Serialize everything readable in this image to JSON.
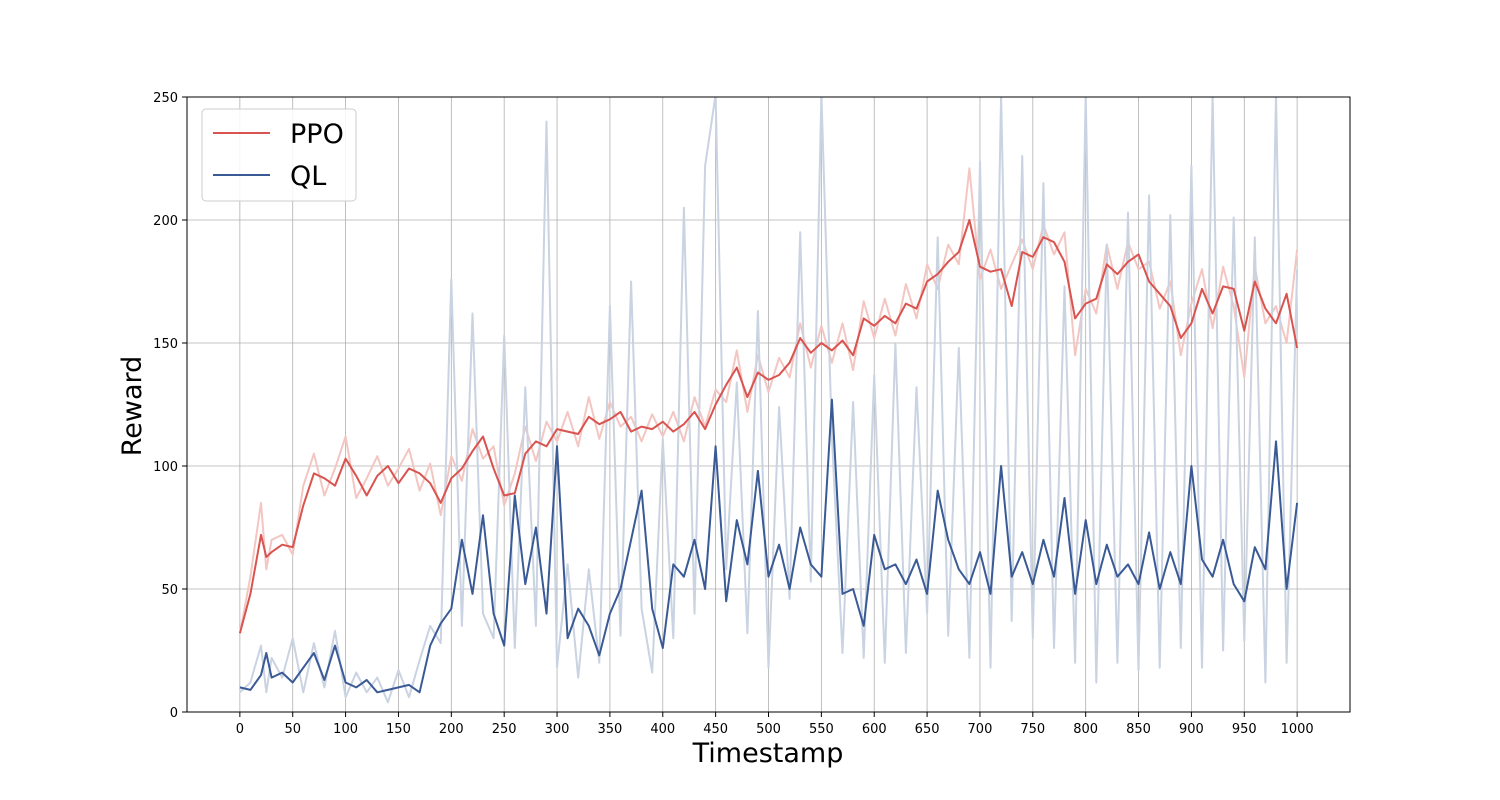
{
  "chart_data": {
    "type": "line",
    "xlabel": "Timestamp",
    "ylabel": "Reward",
    "xlim": [
      -50,
      1050
    ],
    "ylim": [
      0,
      250
    ],
    "x_ticks": [
      0,
      50,
      100,
      150,
      200,
      250,
      300,
      350,
      400,
      450,
      500,
      550,
      600,
      650,
      700,
      750,
      800,
      850,
      900,
      950,
      1000
    ],
    "y_ticks": [
      0,
      50,
      100,
      150,
      200,
      250
    ],
    "grid": true,
    "legend_position": "top-left",
    "series": [
      {
        "name": "PPO",
        "color": "#d9534f",
        "raw_color": "#f3c6c2",
        "x": [
          0,
          10,
          20,
          25,
          30,
          40,
          50,
          60,
          70,
          80,
          90,
          100,
          110,
          120,
          130,
          140,
          150,
          160,
          170,
          180,
          190,
          200,
          210,
          220,
          230,
          240,
          250,
          260,
          270,
          280,
          290,
          300,
          310,
          320,
          330,
          340,
          350,
          360,
          370,
          380,
          390,
          400,
          410,
          420,
          430,
          440,
          450,
          460,
          470,
          480,
          490,
          500,
          510,
          520,
          530,
          540,
          550,
          560,
          570,
          580,
          590,
          600,
          610,
          620,
          630,
          640,
          650,
          660,
          670,
          680,
          690,
          700,
          710,
          720,
          730,
          740,
          750,
          760,
          770,
          780,
          790,
          800,
          810,
          820,
          830,
          840,
          850,
          860,
          870,
          880,
          890,
          900,
          910,
          920,
          930,
          940,
          950,
          960,
          970,
          980,
          990,
          1000
        ],
        "smoothed": [
          32,
          48,
          72,
          63,
          65,
          68,
          67,
          84,
          97,
          95,
          92,
          103,
          96,
          88,
          96,
          100,
          93,
          99,
          97,
          93,
          85,
          95,
          99,
          106,
          112,
          99,
          88,
          89,
          105,
          110,
          108,
          115,
          114,
          113,
          120,
          117,
          119,
          122,
          114,
          116,
          115,
          118,
          114,
          117,
          122,
          115,
          125,
          133,
          140,
          128,
          138,
          135,
          137,
          142,
          152,
          146,
          150,
          147,
          151,
          145,
          160,
          157,
          161,
          158,
          166,
          164,
          175,
          178,
          183,
          187,
          200,
          181,
          179,
          180,
          165,
          187,
          185,
          193,
          191,
          183,
          160,
          166,
          168,
          182,
          178,
          183,
          186,
          175,
          170,
          165,
          152,
          158,
          172,
          162,
          173,
          172,
          155,
          175,
          164,
          158,
          170,
          148
        ],
        "raw": [
          32,
          55,
          85,
          58,
          70,
          72,
          64,
          92,
          105,
          88,
          99,
          112,
          87,
          95,
          104,
          92,
          99,
          107,
          90,
          101,
          80,
          104,
          94,
          115,
          103,
          108,
          84,
          97,
          116,
          102,
          118,
          110,
          122,
          108,
          128,
          111,
          126,
          116,
          120,
          110,
          121,
          112,
          122,
          110,
          128,
          116,
          131,
          126,
          147,
          122,
          145,
          130,
          144,
          136,
          158,
          140,
          157,
          142,
          158,
          139,
          167,
          152,
          168,
          153,
          174,
          160,
          182,
          172,
          190,
          182,
          221,
          176,
          188,
          172,
          182,
          192,
          180,
          198,
          186,
          195,
          145,
          172,
          162,
          190,
          172,
          191,
          180,
          183,
          164,
          175,
          145,
          166,
          180,
          156,
          181,
          165,
          136,
          181,
          158,
          165,
          150,
          188
        ]
      },
      {
        "name": "QL",
        "color": "#3a5a96",
        "raw_color": "#c9d3e2",
        "x": [
          0,
          10,
          20,
          25,
          30,
          40,
          50,
          60,
          70,
          80,
          90,
          100,
          110,
          120,
          130,
          140,
          150,
          160,
          170,
          180,
          190,
          200,
          210,
          220,
          230,
          240,
          250,
          260,
          270,
          280,
          290,
          300,
          310,
          320,
          330,
          340,
          350,
          360,
          370,
          380,
          390,
          400,
          410,
          420,
          430,
          440,
          450,
          460,
          470,
          480,
          490,
          500,
          510,
          520,
          530,
          540,
          550,
          560,
          570,
          580,
          590,
          600,
          610,
          620,
          630,
          640,
          650,
          660,
          670,
          680,
          690,
          700,
          710,
          720,
          730,
          740,
          750,
          760,
          770,
          780,
          790,
          800,
          810,
          820,
          830,
          840,
          850,
          860,
          870,
          880,
          890,
          900,
          910,
          920,
          930,
          940,
          950,
          960,
          970,
          980,
          990,
          1000
        ],
        "smoothed": [
          10,
          9,
          15,
          24,
          14,
          16,
          12,
          18,
          24,
          13,
          27,
          12,
          10,
          13,
          8,
          9,
          10,
          11,
          8,
          27,
          36,
          42,
          70,
          48,
          80,
          40,
          27,
          88,
          52,
          75,
          40,
          108,
          30,
          42,
          35,
          23,
          40,
          50,
          70,
          90,
          42,
          26,
          60,
          55,
          70,
          50,
          108,
          45,
          78,
          60,
          98,
          55,
          68,
          50,
          75,
          60,
          55,
          127,
          48,
          50,
          35,
          72,
          58,
          60,
          52,
          62,
          48,
          90,
          70,
          58,
          52,
          65,
          48,
          100,
          55,
          65,
          52,
          70,
          55,
          87,
          48,
          78,
          52,
          68,
          55,
          60,
          52,
          73,
          50,
          65,
          52,
          100,
          62,
          55,
          70,
          52,
          45,
          67,
          58,
          110,
          50,
          85
        ],
        "raw": [
          8,
          12,
          27,
          8,
          22,
          14,
          30,
          8,
          28,
          10,
          33,
          6,
          16,
          8,
          14,
          4,
          17,
          6,
          21,
          35,
          28,
          176,
          35,
          162,
          40,
          30,
          153,
          26,
          132,
          35,
          240,
          18,
          60,
          14,
          58,
          20,
          165,
          31,
          175,
          42,
          16,
          111,
          30,
          205,
          40,
          222,
          251,
          58,
          134,
          32,
          163,
          18,
          124,
          46,
          195,
          53,
          251,
          112,
          24,
          126,
          22,
          137,
          20,
          150,
          24,
          132,
          40,
          193,
          31,
          148,
          22,
          224,
          18,
          251,
          37,
          226,
          30,
          215,
          26,
          173,
          20,
          251,
          12,
          190,
          20,
          203,
          17,
          210,
          18,
          202,
          26,
          222,
          18,
          251,
          25,
          201,
          29,
          193,
          12,
          251,
          20,
          180
        ]
      }
    ]
  }
}
